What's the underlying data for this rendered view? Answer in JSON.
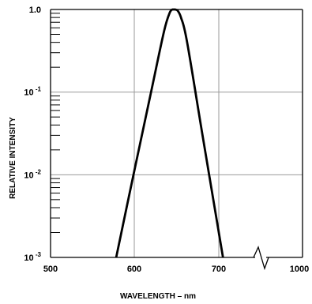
{
  "chart_data": {
    "type": "line",
    "xlabel": "WAVELENGTH – nm",
    "ylabel": "RELATIVE INTENSITY",
    "x_ticks": [
      "500",
      "600",
      "700",
      "1000"
    ],
    "y_ticks": [
      {
        "base": "1.0",
        "exp": ""
      },
      {
        "base": "10",
        "exp": "-1"
      },
      {
        "base": "10",
        "exp": "-2"
      },
      {
        "base": "10",
        "exp": "-3"
      }
    ],
    "y_scale": "log",
    "ylim": [
      0.001,
      1.0
    ],
    "xlim": [
      500,
      1000
    ],
    "x_axis_break": "between 700 and 1000",
    "grid": true,
    "series": [
      {
        "x": [
          578,
          600,
          620,
          635,
          642,
          645,
          648,
          651,
          655,
          662,
          680,
          705
        ],
        "y": [
          0.001,
          0.0117,
          0.106,
          0.55,
          0.93,
          1.0,
          1.0,
          0.97,
          0.8,
          0.42,
          0.033,
          0.001
        ]
      }
    ]
  }
}
